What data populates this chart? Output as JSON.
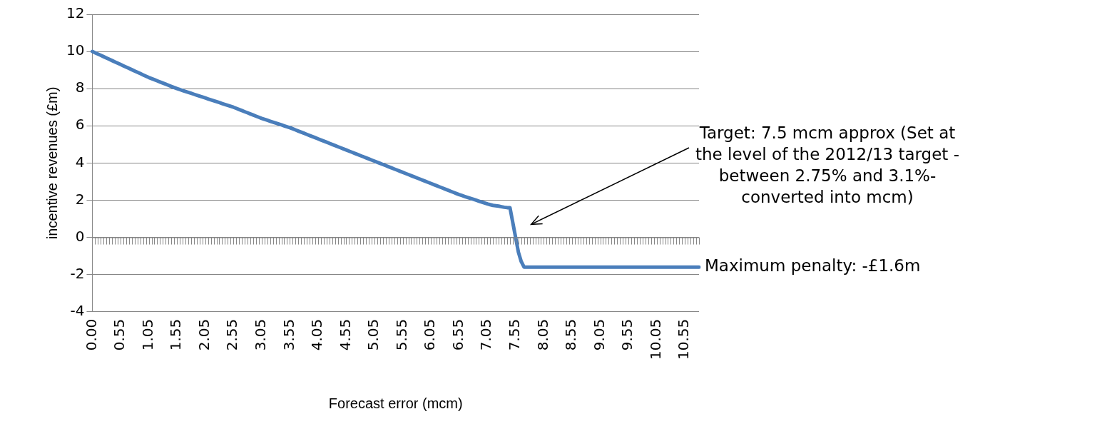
{
  "chart_data": {
    "type": "line",
    "xlabel": "Forecast error (mcm)",
    "ylabel": "incentive revenues (£m)",
    "categories": [
      "0.00",
      null,
      null,
      null,
      null,
      null,
      null,
      null,
      null,
      null,
      "0.55",
      null,
      null,
      null,
      null,
      null,
      null,
      null,
      null,
      null,
      "1.05",
      null,
      null,
      null,
      null,
      null,
      null,
      null,
      null,
      null,
      "1.55",
      null,
      null,
      null,
      null,
      null,
      null,
      null,
      null,
      null,
      "2.05",
      null,
      null,
      null,
      null,
      null,
      null,
      null,
      null,
      null,
      "2.55",
      null,
      null,
      null,
      null,
      null,
      null,
      null,
      null,
      null,
      "3.05",
      null,
      null,
      null,
      null,
      null,
      null,
      null,
      null,
      null,
      "3.55",
      null,
      null,
      null,
      null,
      null,
      null,
      null,
      null,
      null,
      "4.05",
      null,
      null,
      null,
      null,
      null,
      null,
      null,
      null,
      null,
      "4.55",
      null,
      null,
      null,
      null,
      null,
      null,
      null,
      null,
      null,
      "5.05",
      null,
      null,
      null,
      null,
      null,
      null,
      null,
      null,
      null,
      "5.55",
      null,
      null,
      null,
      null,
      null,
      null,
      null,
      null,
      null,
      "6.05",
      null,
      null,
      null,
      null,
      null,
      null,
      null,
      null,
      null,
      "6.55",
      null,
      null,
      null,
      null,
      null,
      null,
      null,
      null,
      null,
      "7.05",
      null,
      null,
      null,
      null,
      null,
      null,
      null,
      null,
      null,
      "7.55",
      null,
      null,
      null,
      null,
      null,
      null,
      null,
      null,
      null,
      "8.05",
      null,
      null,
      null,
      null,
      null,
      null,
      null,
      null,
      null,
      "8.55",
      null,
      null,
      null,
      null,
      null,
      null,
      null,
      null,
      null,
      "9.05",
      null,
      null,
      null,
      null,
      null,
      null,
      null,
      null,
      null,
      "9.55",
      null,
      null,
      null,
      null,
      null,
      null,
      null,
      null,
      null,
      "10.05",
      null,
      null,
      null,
      null,
      null,
      null,
      null,
      null,
      null,
      "10.55",
      null,
      null,
      null,
      null,
      null
    ],
    "series": [
      {
        "color": "#4a7ebb",
        "values": [
          10,
          9.93,
          9.86,
          9.79,
          9.72,
          9.65,
          9.58,
          9.51,
          9.44,
          9.37,
          9.3,
          9.23,
          9.16,
          9.09,
          9.02,
          8.95,
          8.88,
          8.81,
          8.74,
          8.67,
          8.6,
          8.54,
          8.48,
          8.42,
          8.36,
          8.3,
          8.24,
          8.18,
          8.12,
          8.06,
          8.0,
          7.95,
          7.9,
          7.85,
          7.8,
          7.75,
          7.7,
          7.65,
          7.6,
          7.55,
          7.5,
          7.45,
          7.4,
          7.35,
          7.3,
          7.25,
          7.2,
          7.15,
          7.1,
          7.05,
          7.0,
          6.94,
          6.88,
          6.82,
          6.76,
          6.7,
          6.64,
          6.58,
          6.52,
          6.46,
          6.4,
          6.35,
          6.3,
          6.25,
          6.2,
          6.15,
          6.1,
          6.05,
          6.0,
          5.95,
          5.9,
          5.84,
          5.78,
          5.72,
          5.66,
          5.6,
          5.54,
          5.48,
          5.42,
          5.36,
          5.3,
          5.24,
          5.18,
          5.12,
          5.06,
          5.0,
          4.94,
          4.88,
          4.82,
          4.76,
          4.7,
          4.64,
          4.58,
          4.52,
          4.46,
          4.4,
          4.34,
          4.28,
          4.22,
          4.16,
          4.1,
          4.04,
          3.98,
          3.92,
          3.86,
          3.8,
          3.74,
          3.68,
          3.62,
          3.56,
          3.5,
          3.44,
          3.38,
          3.32,
          3.26,
          3.2,
          3.14,
          3.08,
          3.02,
          2.96,
          2.9,
          2.84,
          2.78,
          2.72,
          2.66,
          2.6,
          2.54,
          2.48,
          2.42,
          2.36,
          2.3,
          2.25,
          2.2,
          2.15,
          2.1,
          2.05,
          2.0,
          1.95,
          1.9,
          1.85,
          1.8,
          1.76,
          1.72,
          1.7,
          1.68,
          1.65,
          1.62,
          1.6,
          1.6,
          0.8,
          0.0,
          -0.8,
          -1.3,
          -1.6,
          -1.6,
          -1.6,
          -1.6,
          -1.6,
          -1.6,
          -1.6,
          -1.6,
          -1.6,
          -1.6,
          -1.6,
          -1.6,
          -1.6,
          -1.6,
          -1.6,
          -1.6,
          -1.6,
          -1.6,
          -1.6,
          -1.6,
          -1.6,
          -1.6,
          -1.6,
          -1.6,
          -1.6,
          -1.6,
          -1.6,
          -1.6,
          -1.6,
          -1.6,
          -1.6,
          -1.6,
          -1.6,
          -1.6,
          -1.6,
          -1.6,
          -1.6,
          -1.6,
          -1.6,
          -1.6,
          -1.6,
          -1.6,
          -1.6,
          -1.6,
          -1.6,
          -1.6,
          -1.6,
          -1.6,
          -1.6,
          -1.6,
          -1.6,
          -1.6,
          -1.6,
          -1.6,
          -1.6,
          -1.6,
          -1.6,
          -1.6,
          -1.6,
          -1.6,
          -1.6,
          -1.6,
          -1.6
        ]
      }
    ],
    "ylim": [
      -4,
      12
    ],
    "yticks": [
      -4,
      -2,
      0,
      2,
      4,
      6,
      8,
      10,
      12
    ],
    "grid": "y",
    "legend": false,
    "marker": "none",
    "line_style": "solid",
    "annotations": [
      "Target: 7.5 mcm approx (Set at the level of the 2012/13 target - between 2.75% and 3.1%- converted into mcm)",
      "Maximum penalty: -£1.6m"
    ]
  }
}
